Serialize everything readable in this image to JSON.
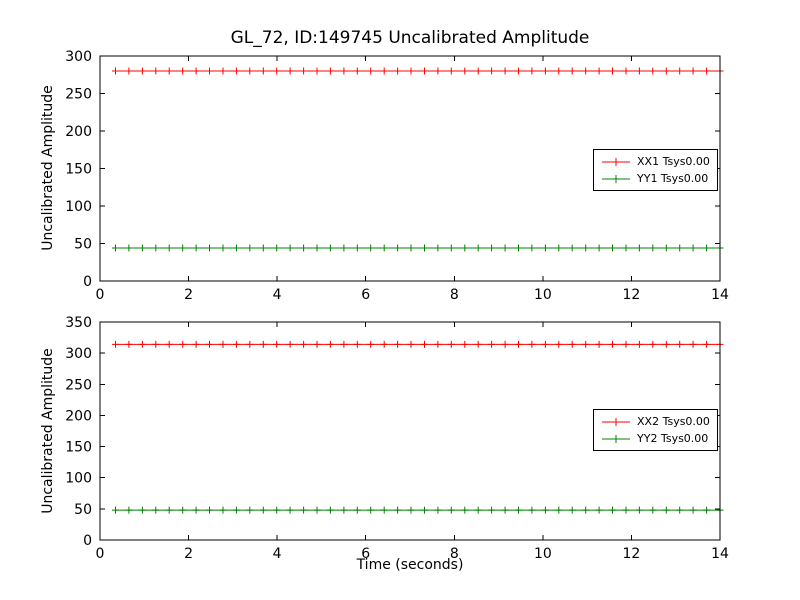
{
  "chart_data": [
    {
      "type": "line",
      "title": "GL_72, ID:149745 Uncalibrated Amplitude",
      "ylabel": "Uncalibrated Amplitude",
      "xlim": [
        0,
        14
      ],
      "ylim": [
        0,
        300
      ],
      "xticks": [
        0,
        2,
        4,
        6,
        8,
        10,
        12,
        14
      ],
      "yticks": [
        0,
        50,
        100,
        150,
        200,
        250,
        300
      ],
      "x_start": 0.35,
      "x_end": 14.0,
      "n_points": 46,
      "marker": "plus",
      "grid": false,
      "legend_position": "center-right",
      "series": [
        {
          "name": "XX1 Tsys0.00",
          "color": "#ff0000",
          "value": 280
        },
        {
          "name": "YY1 Tsys0.00",
          "color": "#008000",
          "value": 44
        }
      ]
    },
    {
      "type": "line",
      "title": "",
      "ylabel": "Uncalibrated Amplitude",
      "xlabel": "Time (seconds)",
      "xlim": [
        0,
        14
      ],
      "ylim": [
        0,
        350
      ],
      "xticks": [
        0,
        2,
        4,
        6,
        8,
        10,
        12,
        14
      ],
      "yticks": [
        0,
        50,
        100,
        150,
        200,
        250,
        300,
        350
      ],
      "x_start": 0.35,
      "x_end": 14.0,
      "n_points": 46,
      "marker": "plus",
      "grid": false,
      "legend_position": "center-right",
      "series": [
        {
          "name": "XX2 Tsys0.00",
          "color": "#ff0000",
          "value": 314
        },
        {
          "name": "YY2 Tsys0.00",
          "color": "#008000",
          "value": 48
        }
      ]
    }
  ]
}
